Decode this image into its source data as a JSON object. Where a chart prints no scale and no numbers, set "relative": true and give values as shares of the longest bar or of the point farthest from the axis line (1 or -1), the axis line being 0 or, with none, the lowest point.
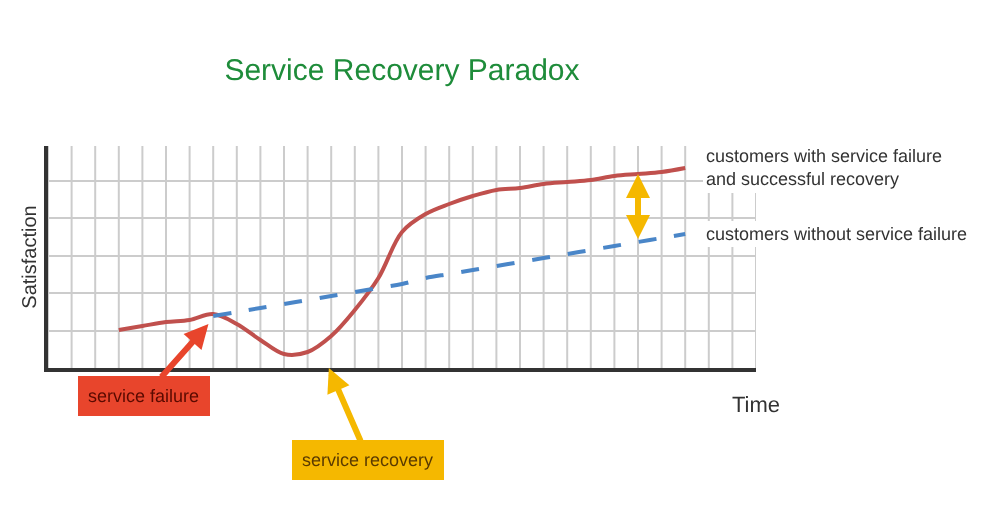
{
  "chart_data": {
    "type": "line",
    "title": "Service Recovery Paradox",
    "xlabel": "Time",
    "ylabel": "Satisfaction",
    "relative": true,
    "grid": true,
    "legend": false,
    "marker": "none",
    "categories": [
      null,
      null,
      null,
      null,
      null,
      null,
      null,
      null,
      null,
      null,
      null,
      null,
      null,
      null,
      null,
      null,
      null,
      null,
      null,
      null,
      null,
      null,
      null,
      null,
      null,
      null,
      null,
      null,
      null,
      null,
      null
    ],
    "series": [
      {
        "name": "customers with service failure and successful recovery",
        "color": "#c0504d",
        "line_style": "solid",
        "values": [
          null,
          null,
          null,
          0.19,
          0.21,
          0.23,
          0.24,
          0.27,
          0.22,
          0.14,
          0.07,
          0.08,
          0.16,
          0.29,
          0.45,
          0.68,
          0.77,
          0.82,
          0.86,
          0.89,
          0.9,
          0.92,
          0.93,
          0.94,
          0.96,
          0.97,
          0.98,
          1,
          null,
          null,
          null
        ]
      },
      {
        "name": "customers without service failure",
        "color": "#4a86c8",
        "line_style": "dashed",
        "values": [
          null,
          null,
          null,
          null,
          null,
          null,
          null,
          0.26,
          0.28,
          0.3,
          0.32,
          0.34,
          0.36,
          0.38,
          0.4,
          0.42,
          0.45,
          0.47,
          0.49,
          0.51,
          0.53,
          0.55,
          0.57,
          0.59,
          0.61,
          0.63,
          0.65,
          0.67,
          null,
          null,
          null
        ]
      }
    ],
    "annotations": [
      "service failure",
      "service recovery"
    ]
  }
}
